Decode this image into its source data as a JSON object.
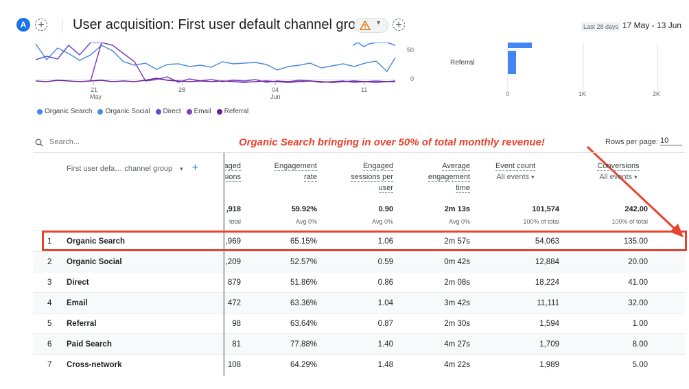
{
  "header": {
    "avatar_letter": "A",
    "title": "User acquisition: First user default channel group",
    "date_badge": "Last 28 days",
    "date_range": "17 May - 13 Jun"
  },
  "chart": {
    "x_ticks": [
      {
        "d": "21",
        "m": "May"
      },
      {
        "d": "28",
        "m": ""
      },
      {
        "d": "04",
        "m": "Jun"
      },
      {
        "d": "11",
        "m": ""
      }
    ],
    "y_right_ticks": [
      "50",
      "0"
    ],
    "bar_category": "Referral",
    "bar_x_ticks": [
      "0",
      "1K",
      "2K"
    ],
    "legend": [
      {
        "label": "Organic Search",
        "color": "#4285f4"
      },
      {
        "label": "Organic Social",
        "color": "#4a8be0"
      },
      {
        "label": "Direct",
        "color": "#5b4fd8"
      },
      {
        "label": "Email",
        "color": "#7b3fbf"
      },
      {
        "label": "Referral",
        "color": "#6a1b9a"
      }
    ]
  },
  "search": {
    "placeholder": "Search..."
  },
  "annotation": "Organic Search bringing in over 50% of total monthly revenue!",
  "pagination": {
    "rows_label": "Rows per page:",
    "rows_value": "10"
  },
  "table": {
    "dimension_header": "First user defa… channel group",
    "columns": [
      {
        "lines": [
          "aged",
          "sions"
        ]
      },
      {
        "lines": [
          "Engagement",
          "rate"
        ]
      },
      {
        "lines": [
          "Engaged",
          "sessions per",
          "user"
        ]
      },
      {
        "lines": [
          "Average",
          "engagement",
          "time"
        ]
      },
      {
        "lines": [
          "Event count"
        ],
        "sub": "All events"
      },
      {
        "lines": [
          "Conversions"
        ],
        "sub": "All events"
      }
    ],
    "totals": [
      {
        "v": ",918",
        "s": "total"
      },
      {
        "v": "59.92%",
        "s": "Avg 0%"
      },
      {
        "v": "0.90",
        "s": "Avg 0%"
      },
      {
        "v": "2m 13s",
        "s": "Avg 0%"
      },
      {
        "v": "101,574",
        "s": "100% of total"
      },
      {
        "v": "242.00",
        "s": "100% of total"
      }
    ],
    "rows": [
      {
        "idx": "1",
        "name": "Organic Search",
        "c": [
          ",969",
          "65.15%",
          "1.06",
          "2m 57s",
          "54,063",
          "135.00"
        ]
      },
      {
        "idx": "2",
        "name": "Organic Social",
        "c": [
          ",209",
          "52.57%",
          "0.59",
          "0m 42s",
          "12,884",
          "20.00"
        ]
      },
      {
        "idx": "3",
        "name": "Direct",
        "c": [
          "879",
          "51.86%",
          "0.86",
          "2m 08s",
          "18,224",
          "41.00"
        ]
      },
      {
        "idx": "4",
        "name": "Email",
        "c": [
          "472",
          "63.36%",
          "1.04",
          "3m 42s",
          "11,111",
          "32.00"
        ]
      },
      {
        "idx": "5",
        "name": "Referral",
        "c": [
          "98",
          "63.64%",
          "0.87",
          "2m 30s",
          "1,594",
          "1.00"
        ]
      },
      {
        "idx": "6",
        "name": "Paid Search",
        "c": [
          "81",
          "77.88%",
          "1.40",
          "4m 27s",
          "1,709",
          "8.00"
        ]
      },
      {
        "idx": "7",
        "name": "Cross-network",
        "c": [
          "108",
          "64.29%",
          "1.48",
          "4m 22s",
          "1,989",
          "5.00"
        ]
      }
    ]
  }
}
